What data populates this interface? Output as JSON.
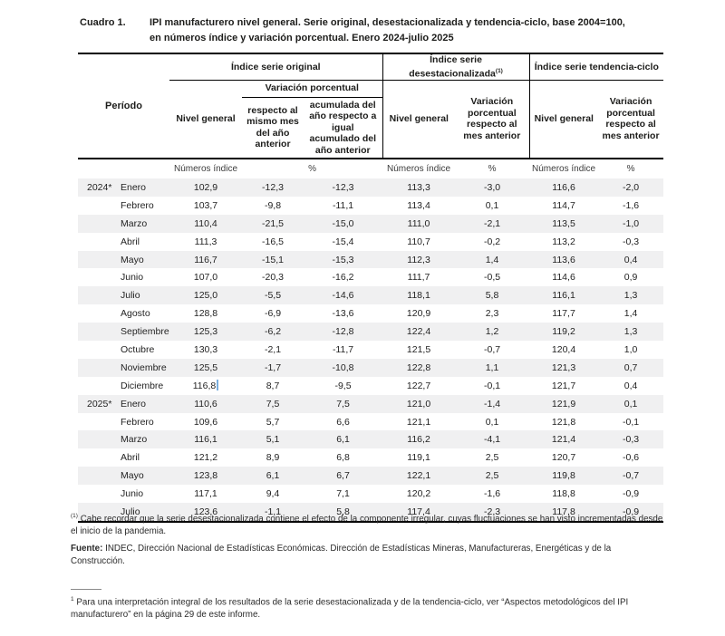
{
  "header": {
    "label": "Cuadro 1.",
    "title_line1": "IPI manufacturero nivel general. Serie original, desestacionalizada y tendencia-ciclo, base 2004=100,",
    "title_line2": "en números índice y variación porcentual. Enero 2024-julio 2025"
  },
  "table": {
    "period_header": "Período",
    "groups": [
      {
        "label": "Índice serie original",
        "sup": ""
      },
      {
        "label": "Índice serie desestacionalizada",
        "sup": "(1)"
      },
      {
        "label": "Índice serie tendencia-ciclo",
        "sup": ""
      }
    ],
    "subgroup_label": "Variación porcentual",
    "column_headers": {
      "orig_nivel": "Nivel general",
      "orig_var_interanual": "respecto al mismo mes del año anterior",
      "orig_var_acumulada": "acumulada del año respecto a igual acumulado del año anterior",
      "desest_nivel": "Nivel general",
      "desest_var": "Variación porcentual respecto al mes anterior",
      "tend_nivel": "Nivel general",
      "tend_var": "Variación porcentual respecto al mes anterior"
    },
    "units": {
      "nivel1": "Números índice",
      "pct1": "%",
      "nivel2": "Números índice",
      "pct2": "%",
      "nivel3": "Números índice",
      "pct3": "%"
    },
    "caret": {
      "section": 0,
      "row": 11,
      "value_index": 0,
      "color": "#79aede"
    },
    "sections": [
      {
        "year": "2024*",
        "rows": [
          {
            "month": "Enero",
            "values": [
              "102,9",
              "-12,3",
              "-12,3",
              "113,3",
              "-3,0",
              "116,6",
              "-2,0"
            ]
          },
          {
            "month": "Febrero",
            "values": [
              "103,7",
              "-9,8",
              "-11,1",
              "113,4",
              "0,1",
              "114,7",
              "-1,6"
            ]
          },
          {
            "month": "Marzo",
            "values": [
              "110,4",
              "-21,5",
              "-15,0",
              "111,0",
              "-2,1",
              "113,5",
              "-1,0"
            ]
          },
          {
            "month": "Abril",
            "values": [
              "111,3",
              "-16,5",
              "-15,4",
              "110,7",
              "-0,2",
              "113,2",
              "-0,3"
            ]
          },
          {
            "month": "Mayo",
            "values": [
              "116,7",
              "-15,1",
              "-15,3",
              "112,3",
              "1,4",
              "113,6",
              "0,4"
            ]
          },
          {
            "month": "Junio",
            "values": [
              "107,0",
              "-20,3",
              "-16,2",
              "111,7",
              "-0,5",
              "114,6",
              "0,9"
            ]
          },
          {
            "month": "Julio",
            "values": [
              "125,0",
              "-5,5",
              "-14,6",
              "118,1",
              "5,8",
              "116,1",
              "1,3"
            ]
          },
          {
            "month": "Agosto",
            "values": [
              "128,8",
              "-6,9",
              "-13,6",
              "120,9",
              "2,3",
              "117,7",
              "1,4"
            ]
          },
          {
            "month": "Septiembre",
            "values": [
              "125,3",
              "-6,2",
              "-12,8",
              "122,4",
              "1,2",
              "119,2",
              "1,3"
            ]
          },
          {
            "month": "Octubre",
            "values": [
              "130,3",
              "-2,1",
              "-11,7",
              "121,5",
              "-0,7",
              "120,4",
              "1,0"
            ]
          },
          {
            "month": "Noviembre",
            "values": [
              "125,5",
              "-1,7",
              "-10,8",
              "122,8",
              "1,1",
              "121,3",
              "0,7"
            ]
          },
          {
            "month": "Diciembre",
            "values": [
              "116,8",
              "8,7",
              "-9,5",
              "122,7",
              "-0,1",
              "121,7",
              "0,4"
            ]
          }
        ]
      },
      {
        "year": "2025*",
        "rows": [
          {
            "month": "Enero",
            "values": [
              "110,6",
              "7,5",
              "7,5",
              "121,0",
              "-1,4",
              "121,9",
              "0,1"
            ]
          },
          {
            "month": "Febrero",
            "values": [
              "109,6",
              "5,7",
              "6,6",
              "121,1",
              "0,1",
              "121,8",
              "-0,1"
            ]
          },
          {
            "month": "Marzo",
            "values": [
              "116,1",
              "5,1",
              "6,1",
              "116,2",
              "-4,1",
              "121,4",
              "-0,3"
            ]
          },
          {
            "month": "Abril",
            "values": [
              "121,2",
              "8,9",
              "6,8",
              "119,1",
              "2,5",
              "120,7",
              "-0,6"
            ]
          },
          {
            "month": "Mayo",
            "values": [
              "123,8",
              "6,1",
              "6,7",
              "122,1",
              "2,5",
              "119,8",
              "-0,7"
            ]
          },
          {
            "month": "Junio",
            "values": [
              "117,1",
              "9,4",
              "7,1",
              "120,2",
              "-1,6",
              "118,8",
              "-0,9"
            ]
          },
          {
            "month": "Julio",
            "values": [
              "123,6",
              "-1,1",
              "5,8",
              "117,4",
              "-2,3",
              "117,8",
              "-0,9"
            ]
          }
        ]
      }
    ]
  },
  "footnotes": {
    "note1_sup": "(1)",
    "note1_text": "Cabe recordar que la serie desestacionalizada contiene el efecto de la componente irregular, cuyas fluctuaciones se han visto incrementadas desde el inicio de la pandemia.",
    "source_label": "Fuente:",
    "source_text": "INDEC, Dirección Nacional de Estadísticas Económicas. Dirección de Estadísticas Mineras, Manufactureras, Energéticas y de la Construcción.",
    "bottom_sup": "1",
    "bottom_text": "Para una interpretación integral de los resultados de la serie desestacionalizada y de la tendencia-ciclo, ver “Aspectos metodológicos del IPI manufacturero” en la página 29 de este informe."
  }
}
